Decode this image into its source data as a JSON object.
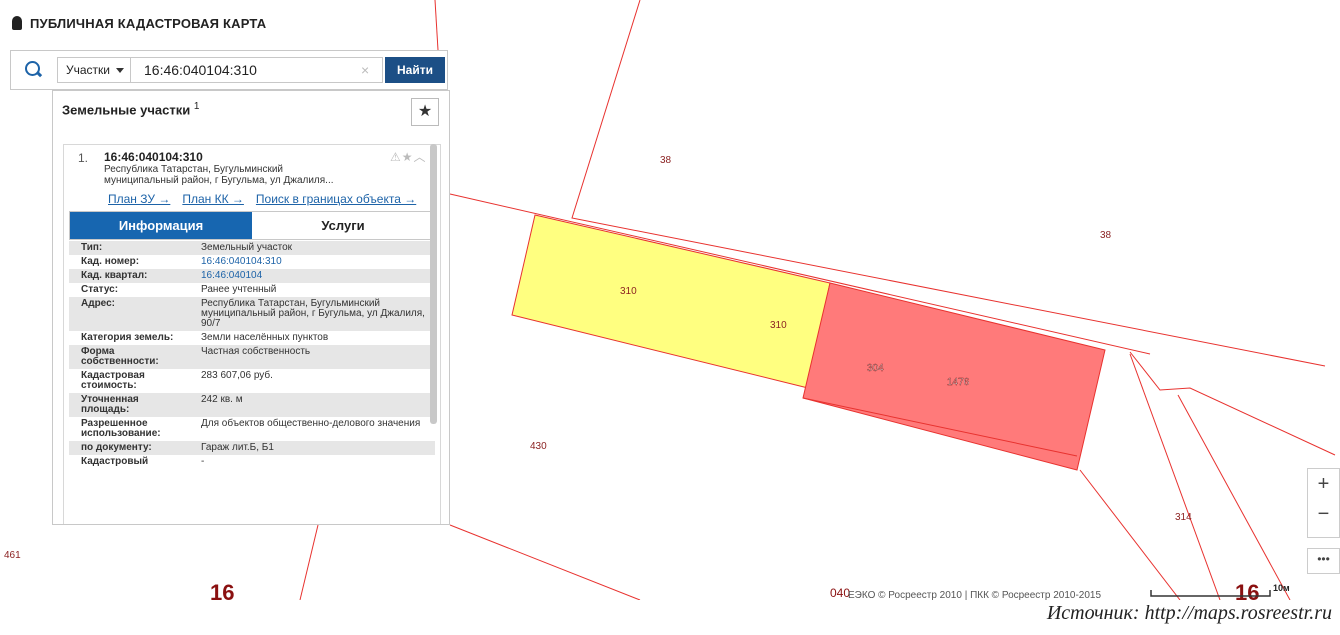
{
  "header": {
    "title": "ПУБЛИЧНАЯ КАДАСТРОВАЯ КАРТА"
  },
  "search": {
    "category": "Участки",
    "query": "16:46:040104:310",
    "button": "Найти"
  },
  "results": {
    "title": "Земельные участки",
    "count": "1",
    "item": {
      "index": "1.",
      "number": "16:46:040104:310",
      "address": "Республика Татарстан, Бугульминский муниципальный район, г Бугульма, ул Джалиля...",
      "links": [
        "План ЗУ →",
        "План КК →",
        "Поиск в границах объекта →"
      ]
    },
    "tabs": [
      "Информация",
      "Услуги"
    ],
    "rows": [
      [
        "Тип:",
        "Земельный участок"
      ],
      [
        "Кад. номер:",
        "16:46:040104:310"
      ],
      [
        "Кад. квартал:",
        "16:46:040104"
      ],
      [
        "Статус:",
        "Ранее учтенный"
      ],
      [
        "Адрес:",
        "Республика Татарстан, Бугульминский муниципальный район, г Бугульма, ул Джалиля, 90/7"
      ],
      [
        "Категория земель:",
        "Земли населённых пунктов"
      ],
      [
        "Форма собственности:",
        "Частная собственность"
      ],
      [
        "Кадастровая стоимость:",
        "283 607,06 руб."
      ],
      [
        "Уточненная площадь:",
        "242 кв. м"
      ],
      [
        "Разрешенное использование:",
        "Для объектов общественно-делового значения"
      ],
      [
        "по документу:",
        "Гараж лит.Б, Б1"
      ],
      [
        "Кадастровый",
        "-"
      ]
    ]
  },
  "map": {
    "labels": [
      "38",
      "38",
      "310",
      "310",
      "304",
      "1476",
      "430",
      "314",
      "461",
      "16",
      "16",
      "040"
    ],
    "copyright": "ЕЭКО © Росреестр 2010 | ПКК © Росреестр 2010-2015",
    "scale": "10м"
  },
  "source": "Источник: http://maps.rosreestr.ru"
}
